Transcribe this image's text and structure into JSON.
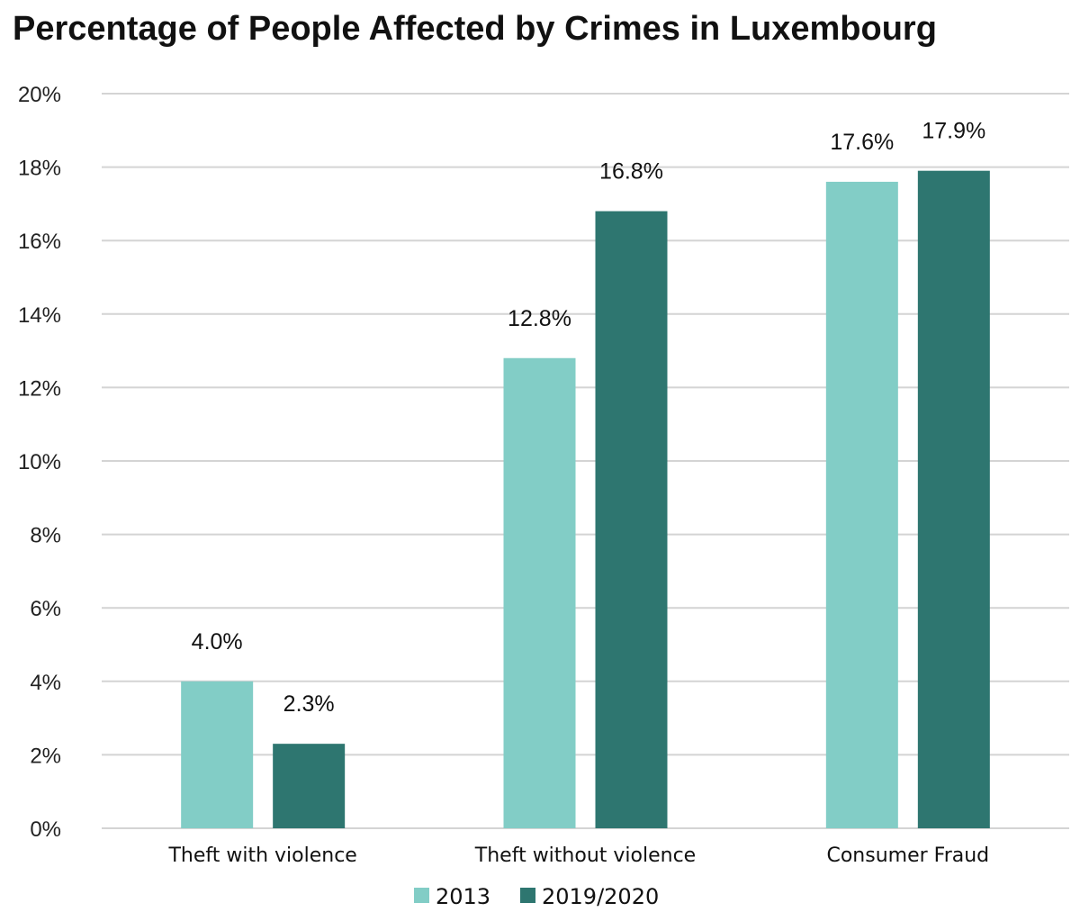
{
  "chart_data": {
    "type": "bar",
    "title": "Percentage of People Affected by Crimes in Luxembourg",
    "categories": [
      "Theft with violence",
      "Theft without violence",
      "Consumer Fraud"
    ],
    "series": [
      {
        "name": "2013",
        "values": [
          4.0,
          12.8,
          17.6
        ],
        "labels": [
          "4.0%",
          "12.8%",
          "17.6%"
        ],
        "color": "#82cdc6"
      },
      {
        "name": "2019/2020",
        "values": [
          2.3,
          16.8,
          17.9
        ],
        "labels": [
          "2.3%",
          "16.8%",
          "17.9%"
        ],
        "color": "#2e7670"
      }
    ],
    "ylim": [
      0,
      20
    ],
    "yticks": [
      0,
      2,
      4,
      6,
      8,
      10,
      12,
      14,
      16,
      18,
      20
    ],
    "ytick_labels": [
      "0%",
      "2%",
      "4%",
      "6%",
      "8%",
      "10%",
      "12%",
      "14%",
      "16%",
      "18%",
      "20%"
    ],
    "xlabel": "",
    "ylabel": "",
    "grid": true,
    "legend_position": "bottom-center"
  }
}
